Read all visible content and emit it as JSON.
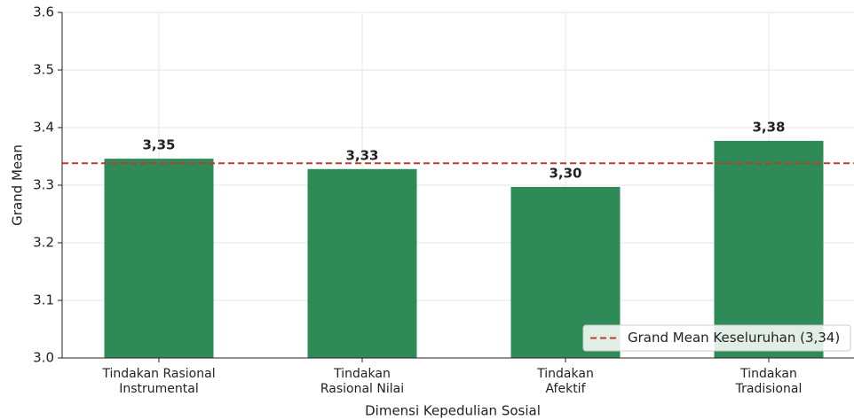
{
  "chart_data": {
    "type": "bar",
    "xlabel": "Dimensi Kepedulian Sosial",
    "ylabel": "Grand Mean",
    "categories": [
      "Tindakan Rasional\nInstrumental",
      "Tindakan\nRasional Nilai",
      "Tindakan\nAfektif",
      "Tindakan\nTradisional"
    ],
    "values": [
      3.346,
      3.328,
      3.297,
      3.377
    ],
    "value_labels": [
      "3,35",
      "3,33",
      "3,30",
      "3,38"
    ],
    "color": "#2e8b57",
    "ylim": [
      3.0,
      3.6
    ],
    "yticks": [
      {
        "value": 3.0,
        "label": "3.0"
      },
      3.1,
      3.2,
      3.3,
      3.4,
      3.5,
      3.6
    ],
    "grid": true,
    "reference_line": {
      "value": 3.338,
      "label": "Grand Mean Keseluruhan (3,34)",
      "color": "#c0392b"
    },
    "legend": "lower right"
  }
}
